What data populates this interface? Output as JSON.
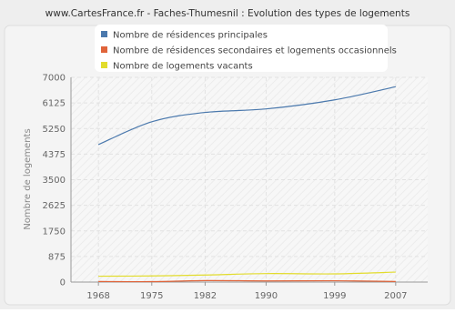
{
  "chart_data": {
    "type": "line",
    "title": "www.CartesFrance.fr - Faches-Thumesnil : Evolution des types de logements",
    "y_label": "Nombre de logements",
    "x": [
      1968,
      1975,
      1982,
      1990,
      1999,
      2007
    ],
    "series": [
      {
        "name": "Nombre de résidences principales",
        "color": "#4b79ad",
        "values": [
          4700,
          5480,
          5800,
          5920,
          6230,
          6680
        ]
      },
      {
        "name": "Nombre de résidences secondaires et logements occasionnels",
        "color": "#e0643a",
        "values": [
          20,
          15,
          50,
          40,
          45,
          20
        ]
      },
      {
        "name": "Nombre de logements vacants",
        "color": "#e2dc2c",
        "values": [
          200,
          210,
          240,
          290,
          280,
          340
        ]
      }
    ],
    "xlim": [
      1964.4,
      2011.2
    ],
    "xticks": [
      1968,
      1975,
      1982,
      1990,
      1999,
      2007
    ],
    "ylim": [
      0,
      7000
    ],
    "yticks": [
      0,
      875,
      1750,
      2625,
      3500,
      4375,
      5250,
      6125,
      7000
    ],
    "grid": true
  }
}
